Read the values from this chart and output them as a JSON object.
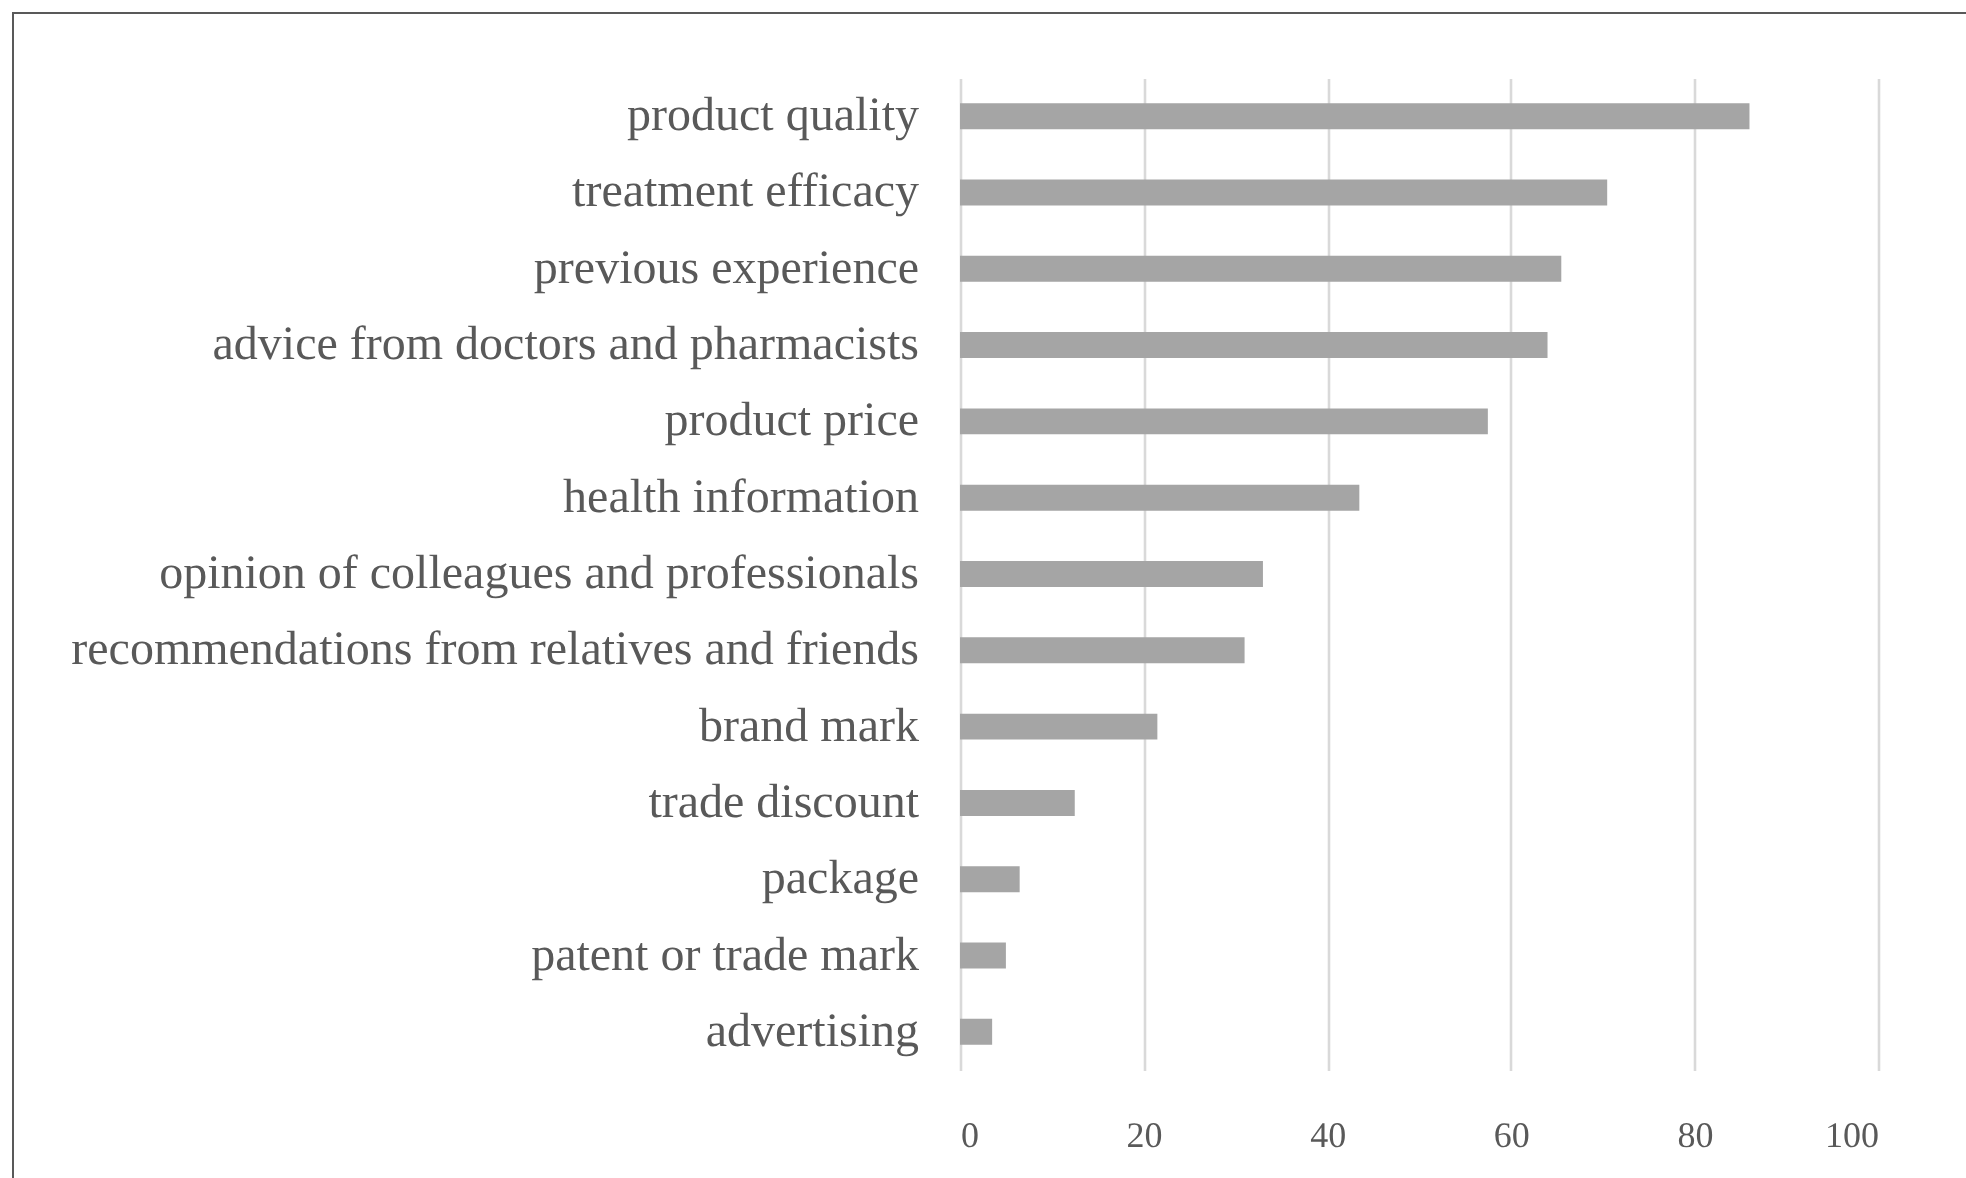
{
  "chart_data": {
    "type": "bar",
    "orientation": "horizontal",
    "categories": [
      "product quality",
      "treatment efficacy",
      "previous experience",
      "advice from doctors and pharmacists",
      "product price",
      "health information",
      "opinion of colleagues and professionals",
      "recommendations from relatives and friends",
      "brand mark",
      "trade discount",
      "package",
      "patent or trade mark",
      "advertising"
    ],
    "values": [
      86,
      70.5,
      65.5,
      64,
      57.5,
      43.5,
      33,
      31,
      21.5,
      12.5,
      6.5,
      5,
      3.5
    ],
    "color": "#a5a5a5",
    "xlim": [
      0,
      100
    ],
    "xticks": [
      0,
      20,
      40,
      60,
      80,
      100
    ],
    "grid": "x"
  }
}
